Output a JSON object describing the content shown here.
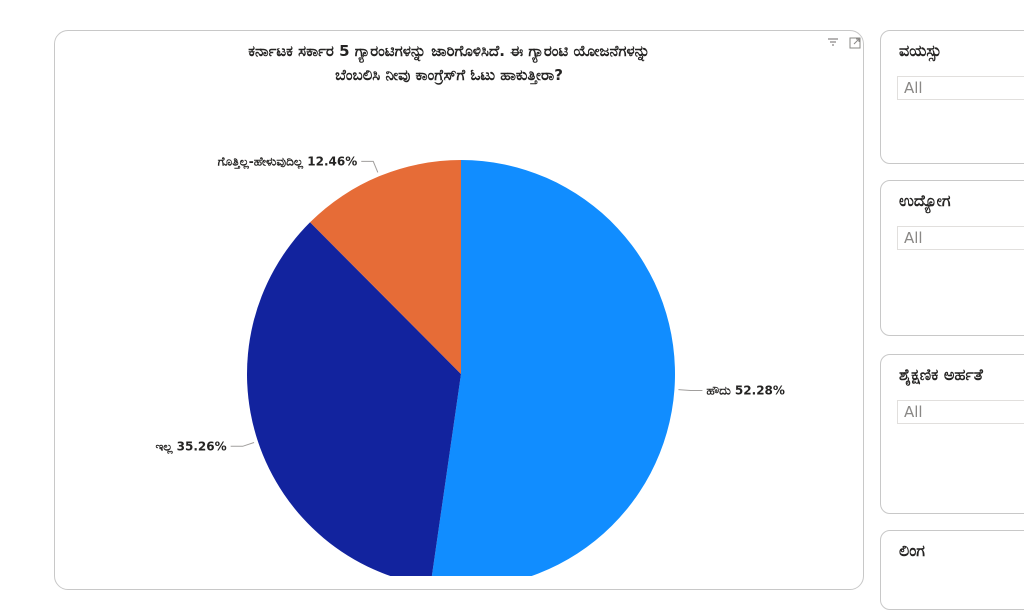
{
  "chart": {
    "title_line1": "ಕರ್ನಾಟಕ ಸರ್ಕಾರ 5 ಗ್ಯಾರಂಟಿಗಳನ್ನು ಜಾರಿಗೊಳಿಸಿದೆ. ಈ ಗ್ಯಾರಂಟಿ ಯೋಜನೆಗಳನ್ನು",
    "title_line2": "ಬೆಂಬಲಿಸಿ ನೀವು ಕಾಂಗ್ರೆಸ್‌ಗೆ ಓಟು ಹಾಕುತ್ತೀರಾ?",
    "icons": [
      "filter-icon",
      "focus-mode-icon"
    ]
  },
  "chart_data": {
    "type": "pie",
    "title": "ಕರ್ನಾಟಕ ಸರ್ಕಾರ 5 ಗ್ಯಾರಂಟಿಗಳನ್ನು ಜಾರಿಗೊಳಿಸಿದೆ. ಈ ಗ್ಯಾರಂಟಿ ಯೋಜನೆಗಳನ್ನು ಬೆಂಬಲಿಸಿ ನೀವು ಕಾಂಗ್ರೆಸ್‌ಗೆ ಓಟು ಹಾಕುತ್ತೀರಾ?",
    "slices": [
      {
        "label": "ಹೌದು",
        "value": 52.28,
        "display": "ಹೌದು 52.28%",
        "color": "#118DFF"
      },
      {
        "label": "ಇಲ್ಲ",
        "value": 35.26,
        "display": "ಇಲ್ಲ 35.26%",
        "color": "#12239E"
      },
      {
        "label": "ಗೊತ್ತಿಲ್ಲ-ಹೇಳುವುದಿಲ್ಲ",
        "value": 12.46,
        "display": "ಗೊತ್ತಿಲ್ಲ-ಹೇಳುವುದಿಲ್ಲ 12.46%",
        "color": "#E66C37"
      }
    ]
  },
  "slicers": [
    {
      "title": "ವಯಸ್ಸು",
      "value": "All"
    },
    {
      "title": "ಉದ್ಯೋಗ",
      "value": "All"
    },
    {
      "title": "ಶೈಕ್ಷಣಿಕ ಅರ್ಹತೆ",
      "value": "All"
    },
    {
      "title": "ಲಿಂಗ",
      "value": ""
    }
  ]
}
